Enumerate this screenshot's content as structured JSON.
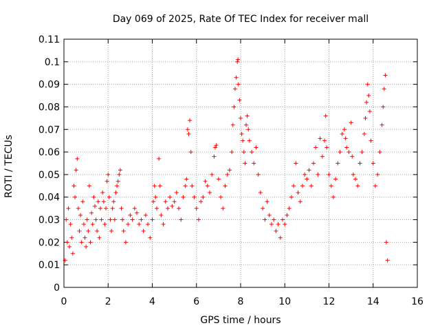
{
  "chart_data": {
    "type": "scatter",
    "title": "Day 069 of 2025, Rate Of TEC Index for receiver mall",
    "xlabel": "GPS time / hours",
    "ylabel": "ROTI / TECUs",
    "xlim": [
      0,
      16
    ],
    "ylim": [
      0,
      0.11
    ],
    "xticks": [
      "0",
      "2",
      "4",
      "6",
      "8",
      "10",
      "12",
      "14",
      "16"
    ],
    "yticks": [
      "0",
      "0.01",
      "0.02",
      "0.03",
      "0.04",
      "0.05",
      "0.06",
      "0.07",
      "0.08",
      "0.09",
      "0.1",
      "0.11"
    ],
    "grid": true,
    "marker": "plus",
    "color": "#ff0000",
    "points": [
      [
        0.05,
        0.012
      ],
      [
        0.1,
        0.03
      ],
      [
        0.15,
        0.02
      ],
      [
        0.2,
        0.035
      ],
      [
        0.25,
        0.018
      ],
      [
        0.3,
        0.028
      ],
      [
        0.35,
        0.022
      ],
      [
        0.4,
        0.015
      ],
      [
        0.45,
        0.045
      ],
      [
        0.5,
        0.04
      ],
      [
        0.55,
        0.052
      ],
      [
        0.6,
        0.057
      ],
      [
        0.65,
        0.035
      ],
      [
        0.7,
        0.025
      ],
      [
        0.75,
        0.032
      ],
      [
        0.8,
        0.02
      ],
      [
        0.85,
        0.038
      ],
      [
        0.9,
        0.028
      ],
      [
        0.95,
        0.022
      ],
      [
        1.0,
        0.018
      ],
      [
        1.05,
        0.03
      ],
      [
        1.1,
        0.025
      ],
      [
        1.15,
        0.045
      ],
      [
        1.2,
        0.02
      ],
      [
        1.25,
        0.033
      ],
      [
        1.3,
        0.028
      ],
      [
        1.35,
        0.04
      ],
      [
        1.4,
        0.036
      ],
      [
        1.45,
        0.03
      ],
      [
        1.5,
        0.025
      ],
      [
        1.55,
        0.038
      ],
      [
        1.6,
        0.022
      ],
      [
        1.65,
        0.035
      ],
      [
        1.7,
        0.03
      ],
      [
        1.75,
        0.042
      ],
      [
        1.8,
        0.038
      ],
      [
        1.85,
        0.028
      ],
      [
        1.9,
        0.035
      ],
      [
        1.95,
        0.047
      ],
      [
        2.0,
        0.05
      ],
      [
        2.05,
        0.04
      ],
      [
        2.1,
        0.03
      ],
      [
        2.15,
        0.025
      ],
      [
        2.2,
        0.035
      ],
      [
        2.25,
        0.038
      ],
      [
        2.3,
        0.03
      ],
      [
        2.35,
        0.042
      ],
      [
        2.4,
        0.045
      ],
      [
        2.45,
        0.047
      ],
      [
        2.5,
        0.05
      ],
      [
        2.55,
        0.052
      ],
      [
        2.6,
        0.035
      ],
      [
        2.65,
        0.03
      ],
      [
        2.7,
        0.025
      ],
      [
        2.8,
        0.02
      ],
      [
        2.9,
        0.028
      ],
      [
        3.0,
        0.032
      ],
      [
        3.1,
        0.03
      ],
      [
        3.2,
        0.035
      ],
      [
        3.3,
        0.033
      ],
      [
        3.4,
        0.028
      ],
      [
        3.5,
        0.03
      ],
      [
        3.6,
        0.025
      ],
      [
        3.7,
        0.032
      ],
      [
        3.8,
        0.028
      ],
      [
        3.9,
        0.022
      ],
      [
        4.0,
        0.03
      ],
      [
        4.05,
        0.038
      ],
      [
        4.1,
        0.045
      ],
      [
        4.15,
        0.04
      ],
      [
        4.2,
        0.035
      ],
      [
        4.3,
        0.057
      ],
      [
        4.35,
        0.045
      ],
      [
        4.4,
        0.032
      ],
      [
        4.5,
        0.028
      ],
      [
        4.6,
        0.038
      ],
      [
        4.7,
        0.035
      ],
      [
        4.8,
        0.04
      ],
      [
        4.9,
        0.036
      ],
      [
        5.0,
        0.038
      ],
      [
        5.1,
        0.042
      ],
      [
        5.2,
        0.035
      ],
      [
        5.3,
        0.03
      ],
      [
        5.4,
        0.04
      ],
      [
        5.5,
        0.045
      ],
      [
        5.55,
        0.048
      ],
      [
        5.6,
        0.07
      ],
      [
        5.65,
        0.068
      ],
      [
        5.7,
        0.074
      ],
      [
        5.75,
        0.06
      ],
      [
        5.8,
        0.045
      ],
      [
        5.9,
        0.04
      ],
      [
        6.0,
        0.035
      ],
      [
        6.1,
        0.03
      ],
      [
        6.2,
        0.038
      ],
      [
        6.3,
        0.04
      ],
      [
        6.4,
        0.047
      ],
      [
        6.5,
        0.045
      ],
      [
        6.6,
        0.042
      ],
      [
        6.7,
        0.05
      ],
      [
        6.8,
        0.058
      ],
      [
        6.85,
        0.062
      ],
      [
        6.9,
        0.063
      ],
      [
        7.0,
        0.048
      ],
      [
        7.1,
        0.04
      ],
      [
        7.2,
        0.035
      ],
      [
        7.3,
        0.045
      ],
      [
        7.4,
        0.05
      ],
      [
        7.5,
        0.052
      ],
      [
        7.6,
        0.06
      ],
      [
        7.65,
        0.072
      ],
      [
        7.7,
        0.08
      ],
      [
        7.75,
        0.088
      ],
      [
        7.8,
        0.093
      ],
      [
        7.85,
        0.1
      ],
      [
        7.88,
        0.101
      ],
      [
        7.9,
        0.09
      ],
      [
        7.95,
        0.083
      ],
      [
        8.0,
        0.075
      ],
      [
        8.05,
        0.068
      ],
      [
        8.1,
        0.065
      ],
      [
        8.15,
        0.06
      ],
      [
        8.2,
        0.055
      ],
      [
        8.25,
        0.072
      ],
      [
        8.3,
        0.076
      ],
      [
        8.35,
        0.07
      ],
      [
        8.4,
        0.065
      ],
      [
        8.5,
        0.06
      ],
      [
        8.6,
        0.055
      ],
      [
        8.7,
        0.062
      ],
      [
        8.8,
        0.05
      ],
      [
        8.9,
        0.042
      ],
      [
        9.0,
        0.035
      ],
      [
        9.1,
        0.03
      ],
      [
        9.2,
        0.038
      ],
      [
        9.3,
        0.032
      ],
      [
        9.4,
        0.028
      ],
      [
        9.5,
        0.03
      ],
      [
        9.6,
        0.025
      ],
      [
        9.7,
        0.028
      ],
      [
        9.8,
        0.022
      ],
      [
        9.9,
        0.03
      ],
      [
        10.0,
        0.028
      ],
      [
        10.1,
        0.032
      ],
      [
        10.2,
        0.035
      ],
      [
        10.3,
        0.04
      ],
      [
        10.4,
        0.045
      ],
      [
        10.5,
        0.055
      ],
      [
        10.6,
        0.042
      ],
      [
        10.7,
        0.038
      ],
      [
        10.8,
        0.045
      ],
      [
        10.9,
        0.05
      ],
      [
        11.0,
        0.048
      ],
      [
        11.1,
        0.052
      ],
      [
        11.2,
        0.045
      ],
      [
        11.3,
        0.055
      ],
      [
        11.4,
        0.062
      ],
      [
        11.5,
        0.05
      ],
      [
        11.6,
        0.066
      ],
      [
        11.7,
        0.058
      ],
      [
        11.8,
        0.065
      ],
      [
        11.85,
        0.076
      ],
      [
        11.9,
        0.062
      ],
      [
        12.0,
        0.05
      ],
      [
        12.1,
        0.045
      ],
      [
        12.2,
        0.04
      ],
      [
        12.3,
        0.048
      ],
      [
        12.4,
        0.055
      ],
      [
        12.5,
        0.06
      ],
      [
        12.6,
        0.068
      ],
      [
        12.7,
        0.07
      ],
      [
        12.75,
        0.066
      ],
      [
        12.8,
        0.062
      ],
      [
        12.9,
        0.06
      ],
      [
        13.0,
        0.073
      ],
      [
        13.05,
        0.058
      ],
      [
        13.1,
        0.05
      ],
      [
        13.2,
        0.048
      ],
      [
        13.3,
        0.045
      ],
      [
        13.4,
        0.055
      ],
      [
        13.5,
        0.06
      ],
      [
        13.6,
        0.068
      ],
      [
        13.65,
        0.075
      ],
      [
        13.7,
        0.082
      ],
      [
        13.75,
        0.09
      ],
      [
        13.8,
        0.085
      ],
      [
        13.85,
        0.078
      ],
      [
        13.9,
        0.065
      ],
      [
        14.0,
        0.055
      ],
      [
        14.1,
        0.045
      ],
      [
        14.2,
        0.05
      ],
      [
        14.3,
        0.06
      ],
      [
        14.4,
        0.072
      ],
      [
        14.45,
        0.08
      ],
      [
        14.5,
        0.088
      ],
      [
        14.55,
        0.094
      ],
      [
        14.6,
        0.02
      ],
      [
        14.65,
        0.012
      ]
    ]
  }
}
